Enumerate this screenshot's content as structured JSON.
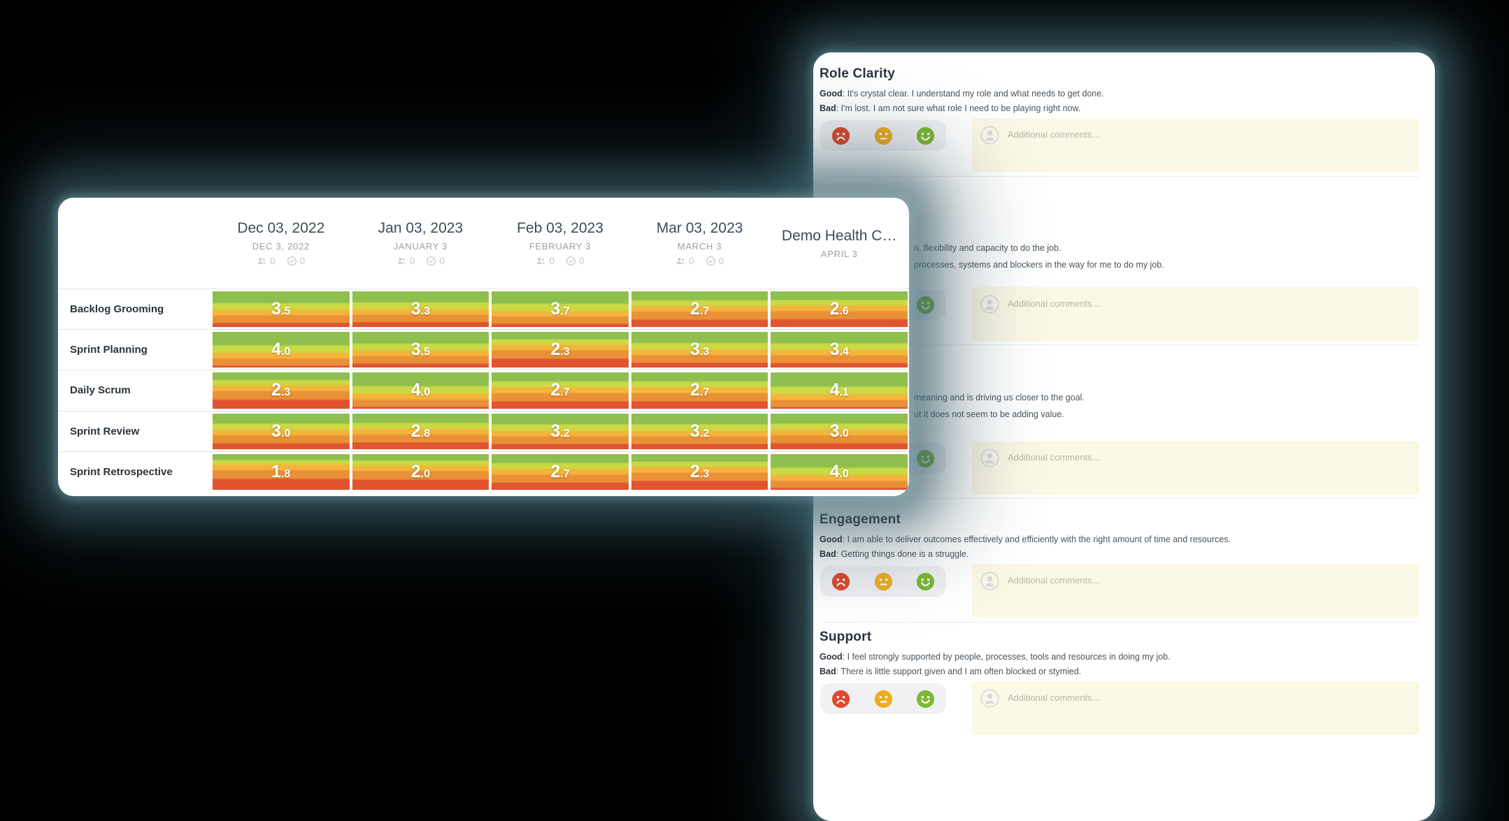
{
  "page": {
    "background": "#000000"
  },
  "matrix_panel": {
    "columns": [
      {
        "title": "Dec 03, 2022",
        "subtitle": "DEC 3, 2022",
        "participants": "0",
        "checks": "0"
      },
      {
        "title": "Jan 03, 2023",
        "subtitle": "JANUARY 3",
        "participants": "0",
        "checks": "0"
      },
      {
        "title": "Feb 03, 2023",
        "subtitle": "FEBRUARY 3",
        "participants": "0",
        "checks": "0"
      },
      {
        "title": "Mar 03, 2023",
        "subtitle": "MARCH 3",
        "participants": "0",
        "checks": "0"
      },
      {
        "title": "Demo Health C…",
        "subtitle": "APRIL 3"
      }
    ],
    "rows": [
      {
        "label": "Backlog Grooming",
        "scores": [
          3.5,
          3.3,
          3.7,
          2.7,
          2.6
        ]
      },
      {
        "label": "Sprint Planning",
        "scores": [
          4.0,
          3.5,
          2.3,
          3.3,
          3.4
        ]
      },
      {
        "label": "Daily Scrum",
        "scores": [
          2.3,
          4.0,
          2.7,
          2.7,
          4.1
        ]
      },
      {
        "label": "Sprint Review",
        "scores": [
          3.0,
          2.8,
          3.2,
          3.2,
          3.0
        ]
      },
      {
        "label": "Sprint Retrospective",
        "scores": [
          1.8,
          2.0,
          2.7,
          2.3,
          4.0
        ]
      }
    ],
    "band_colors": [
      "#8ebf4f",
      "#cbd944",
      "#f4b53b",
      "#ea9138",
      "#e15430"
    ],
    "icon_names": [
      "people-icon",
      "check-circle-icon"
    ]
  },
  "survey_panel": {
    "good_label": "Good",
    "bad_label": "Bad",
    "comment_placeholder": "Additional comments...",
    "rating_options": [
      {
        "name": "sad-face",
        "color": "#e0492c"
      },
      {
        "name": "neutral-face",
        "color": "#efae22"
      },
      {
        "name": "happy-face",
        "color": "#7db832"
      }
    ],
    "sections": [
      {
        "title": "Role Clarity",
        "good": "It's crystal clear. I understand my role and what needs to get done.",
        "bad": "I'm lost. I am not sure what role I need to be playing right now.",
        "occluded": false
      },
      {
        "title": "",
        "good": "n, flexibility and capacity to do the job.",
        "bad": "processes, systems and blockers in the way for me to do my job.",
        "occluded": true
      },
      {
        "title": "",
        "good": "meaning and is driving us closer to the goal.",
        "bad": "ut it does not seem to be adding value.",
        "occluded": true
      },
      {
        "title": "Engagement",
        "good": "I am able to deliver outcomes effectively and efficiently with the right amount of time and resources.",
        "bad": "Getting things done is a struggle.",
        "occluded": false
      },
      {
        "title": "Support",
        "good": "I feel strongly supported by people, processes, tools and resources in doing my job.",
        "bad": "There is little support given and I am often blocked or stymied.",
        "occluded": false
      }
    ]
  },
  "chart_data": {
    "type": "heatmap",
    "title": "Team health check matrix",
    "columns": [
      "Dec 03, 2022",
      "Jan 03, 2023",
      "Feb 03, 2023",
      "Mar 03, 2023",
      "Demo Health C…"
    ],
    "rows": [
      "Backlog Grooming",
      "Sprint Planning",
      "Daily Scrum",
      "Sprint Review",
      "Sprint Retrospective"
    ],
    "values": [
      [
        3.5,
        3.3,
        3.7,
        2.7,
        2.6
      ],
      [
        4.0,
        3.5,
        2.3,
        3.3,
        3.4
      ],
      [
        2.3,
        4.0,
        2.7,
        2.7,
        4.1
      ],
      [
        3.0,
        2.8,
        3.2,
        3.2,
        3.0
      ],
      [
        1.8,
        2.0,
        2.7,
        2.3,
        4.0
      ]
    ],
    "scale": [
      1,
      5
    ],
    "band_colors": [
      "#8ebf4f",
      "#cbd944",
      "#f4b53b",
      "#ea9138",
      "#e15430"
    ]
  }
}
